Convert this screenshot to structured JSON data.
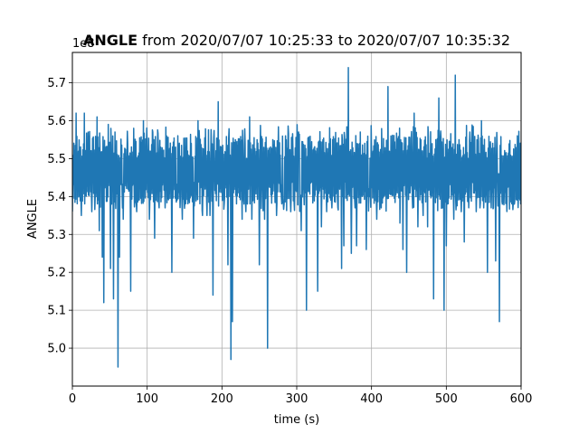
{
  "chart_data": {
    "type": "line",
    "title_bold": "ANGLE",
    "title_rest": " from 2020/07/07 10:25:33 to 2020/07/07 10:35:32",
    "xlabel": "time (s)",
    "ylabel": "ANGLE",
    "offset_text": "1e8",
    "xlim": [
      0,
      600
    ],
    "ylim": [
      4.9,
      5.78
    ],
    "xticks": [
      0,
      100,
      200,
      300,
      400,
      500,
      600
    ],
    "yticks": [
      5.0,
      5.1,
      5.2,
      5.3,
      5.4,
      5.5,
      5.6,
      5.7
    ],
    "grid": true,
    "line_color": "#1f77b4",
    "spikes": [
      {
        "x": 5,
        "y": 5.62
      },
      {
        "x": 12,
        "y": 5.35
      },
      {
        "x": 16,
        "y": 5.62
      },
      {
        "x": 26,
        "y": 5.36
      },
      {
        "x": 33,
        "y": 5.61
      },
      {
        "x": 36,
        "y": 5.31
      },
      {
        "x": 40,
        "y": 5.24
      },
      {
        "x": 42,
        "y": 5.12
      },
      {
        "x": 48,
        "y": 5.59
      },
      {
        "x": 51,
        "y": 5.21
      },
      {
        "x": 55,
        "y": 5.13
      },
      {
        "x": 57,
        "y": 5.57
      },
      {
        "x": 61,
        "y": 4.95
      },
      {
        "x": 63,
        "y": 5.24
      },
      {
        "x": 68,
        "y": 5.34
      },
      {
        "x": 78,
        "y": 5.15
      },
      {
        "x": 82,
        "y": 5.58
      },
      {
        "x": 86,
        "y": 5.36
      },
      {
        "x": 95,
        "y": 5.6
      },
      {
        "x": 103,
        "y": 5.34
      },
      {
        "x": 110,
        "y": 5.38
      },
      {
        "x": 109,
        "y": 5.55
      },
      {
        "x": 110,
        "y": 5.29
      },
      {
        "x": 124,
        "y": 5.37
      },
      {
        "x": 133,
        "y": 5.2
      },
      {
        "x": 140,
        "y": 5.39
      },
      {
        "x": 147,
        "y": 5.34
      },
      {
        "x": 154,
        "y": 5.52
      },
      {
        "x": 162,
        "y": 5.29
      },
      {
        "x": 168,
        "y": 5.6
      },
      {
        "x": 174,
        "y": 5.35
      },
      {
        "x": 180,
        "y": 5.35
      },
      {
        "x": 184,
        "y": 5.35
      },
      {
        "x": 188,
        "y": 5.14
      },
      {
        "x": 191,
        "y": 5.45
      },
      {
        "x": 195,
        "y": 5.65
      },
      {
        "x": 203,
        "y": 5.38
      },
      {
        "x": 208,
        "y": 5.22
      },
      {
        "x": 212,
        "y": 4.97
      },
      {
        "x": 214,
        "y": 5.07
      },
      {
        "x": 218,
        "y": 5.55
      },
      {
        "x": 227,
        "y": 5.34
      },
      {
        "x": 232,
        "y": 5.36
      },
      {
        "x": 237,
        "y": 5.61
      },
      {
        "x": 240,
        "y": 5.34
      },
      {
        "x": 247,
        "y": 5.55
      },
      {
        "x": 250,
        "y": 5.22
      },
      {
        "x": 257,
        "y": 5.34
      },
      {
        "x": 261,
        "y": 5.0
      },
      {
        "x": 268,
        "y": 5.55
      },
      {
        "x": 273,
        "y": 5.35
      },
      {
        "x": 279,
        "y": 5.42
      },
      {
        "x": 285,
        "y": 5.56
      },
      {
        "x": 292,
        "y": 5.36
      },
      {
        "x": 300,
        "y": 5.52
      },
      {
        "x": 306,
        "y": 5.31
      },
      {
        "x": 313,
        "y": 5.1
      },
      {
        "x": 319,
        "y": 5.53
      },
      {
        "x": 328,
        "y": 5.15
      },
      {
        "x": 333,
        "y": 5.32
      },
      {
        "x": 340,
        "y": 5.36
      },
      {
        "x": 347,
        "y": 5.37
      },
      {
        "x": 348,
        "y": 5.55
      },
      {
        "x": 355,
        "y": 5.37
      },
      {
        "x": 360,
        "y": 5.21
      },
      {
        "x": 363,
        "y": 5.27
      },
      {
        "x": 369,
        "y": 5.74
      },
      {
        "x": 373,
        "y": 5.25
      },
      {
        "x": 378,
        "y": 5.37
      },
      {
        "x": 380,
        "y": 5.27
      },
      {
        "x": 385,
        "y": 5.57
      },
      {
        "x": 393,
        "y": 5.26
      },
      {
        "x": 397,
        "y": 5.4
      },
      {
        "x": 407,
        "y": 5.34
      },
      {
        "x": 413,
        "y": 5.37
      },
      {
        "x": 422,
        "y": 5.69
      },
      {
        "x": 425,
        "y": 5.45
      },
      {
        "x": 434,
        "y": 5.43
      },
      {
        "x": 438,
        "y": 5.33
      },
      {
        "x": 442,
        "y": 5.26
      },
      {
        "x": 447,
        "y": 5.2
      },
      {
        "x": 452,
        "y": 5.43
      },
      {
        "x": 457,
        "y": 5.62
      },
      {
        "x": 462,
        "y": 5.32
      },
      {
        "x": 469,
        "y": 5.35
      },
      {
        "x": 475,
        "y": 5.32
      },
      {
        "x": 483,
        "y": 5.13
      },
      {
        "x": 490,
        "y": 5.66
      },
      {
        "x": 495,
        "y": 5.37
      },
      {
        "x": 497,
        "y": 5.1
      },
      {
        "x": 500,
        "y": 5.27
      },
      {
        "x": 510,
        "y": 5.34
      },
      {
        "x": 512,
        "y": 5.72
      },
      {
        "x": 517,
        "y": 5.55
      },
      {
        "x": 520,
        "y": 5.36
      },
      {
        "x": 524,
        "y": 5.28
      },
      {
        "x": 530,
        "y": 5.37
      },
      {
        "x": 535,
        "y": 5.55
      },
      {
        "x": 540,
        "y": 5.36
      },
      {
        "x": 545,
        "y": 5.37
      },
      {
        "x": 547,
        "y": 5.6
      },
      {
        "x": 550,
        "y": 5.37
      },
      {
        "x": 555,
        "y": 5.2
      },
      {
        "x": 560,
        "y": 5.37
      },
      {
        "x": 566,
        "y": 5.23
      },
      {
        "x": 570,
        "y": 5.46
      },
      {
        "x": 571,
        "y": 5.07
      },
      {
        "x": 575,
        "y": 5.38
      },
      {
        "x": 591,
        "y": 5.38
      },
      {
        "x": 595,
        "y": 5.56
      }
    ]
  }
}
